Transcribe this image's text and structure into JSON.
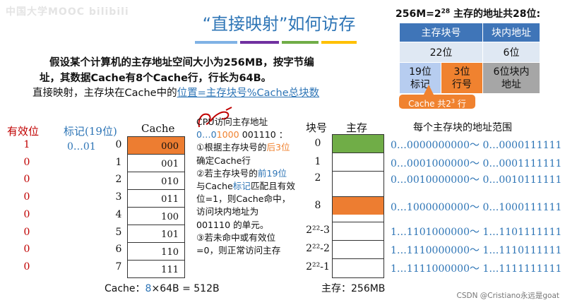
{
  "watermark": "中国大学MOOC bilibili",
  "title": "“直接映射”如何访存",
  "intro": {
    "line1": "假设某个计算机的主存地址空间大小为256MB，按字节编",
    "line2": "址，其数据Cache有8个Cache行，行长为64B。",
    "rule_prefix": "直接映射，主存块在Cache中的",
    "rule_highlight": "位置=主存块号%Cache总块数"
  },
  "address_format": {
    "header_prefix": "256M=2",
    "header_exp": "28",
    "header_suffix": " 主存的地址共28位:",
    "col1": "主存块号",
    "col2": "块内地址",
    "bits1": "22位",
    "bits2": "6位",
    "tag_line1": "19位",
    "tag_line2": "标记",
    "line_line1": "3位",
    "line_line2": "行号",
    "offset_line1": "6位块内",
    "offset_line2": "地址",
    "callout_prefix": "Cache 共2",
    "callout_exp": "3",
    "callout_suffix": " 行"
  },
  "cache": {
    "valid_header": "有效位",
    "tag_header": "标记(19位)",
    "cache_header": "Cache",
    "valid_bits": [
      "1",
      "0",
      "0",
      "0",
      "0",
      "0",
      "0",
      "0"
    ],
    "tag_value": "0…01",
    "indices": [
      "0",
      "1",
      "2",
      "3",
      "4",
      "5",
      "6",
      "7"
    ],
    "lines": [
      "000",
      "001",
      "010",
      "011",
      "100",
      "101",
      "110",
      "111"
    ],
    "footer_prefix": "Cache：",
    "footer_num": "8",
    "footer_suffix": "×64B = 512B"
  },
  "steps": {
    "line1": "CPU访问主存地址",
    "addr_a": "0…0",
    "addr_b": "1000",
    "addr_c": " 001110 ：",
    "s1a": "①根据主存块号的",
    "s1b": "后",
    "s1c": "3位",
    "s1d": "确定Cache行",
    "s2a": "②若主存块号的",
    "s2b": "前19",
    "s2c": "位",
    "s2d": "与Cache",
    "s2e": "标记",
    "s2f": "匹配",
    "s2g": "且有效位=1，则Cache命中，访问块内地址为 001110 的单元。",
    "s3": "③若未命中或有效位=0，则正常访问主存"
  },
  "memory": {
    "block_header": "块号",
    "mem_header": "主存",
    "range_header": "每个主存块的地址范围",
    "blocks": [
      "0",
      "1",
      "2",
      "8",
      "2²²-3",
      "2²²-2",
      "2²²-1"
    ],
    "ranges": [
      {
        "a": "0…0000",
        "b": "000000～ 0…0000",
        "c": "111111"
      },
      {
        "a": "0…0001",
        "b": "000000～ 0…0001",
        "c": "111111"
      },
      {
        "a": "0…0010",
        "b": "000000～ 0…0010",
        "c": "111111"
      },
      {
        "a": "0…1000",
        "b": "000000～ 0…1000",
        "c": "111111"
      },
      {
        "a": "1…1101",
        "b": "000000～ 1…1101",
        "c": "111111"
      },
      {
        "a": "1…1110",
        "b": "000000～ 1…1110",
        "c": "111111"
      },
      {
        "a": "1…1111",
        "b": "000000～ 1…1111",
        "c": "111111"
      }
    ],
    "footer": "主存：256MB"
  },
  "colors": {
    "blue": "#2e75b6",
    "orange": "#ed7d31",
    "green": "#70ad47",
    "red": "#c00000"
  },
  "credit": "CSDN @Cristiano永远是goat"
}
